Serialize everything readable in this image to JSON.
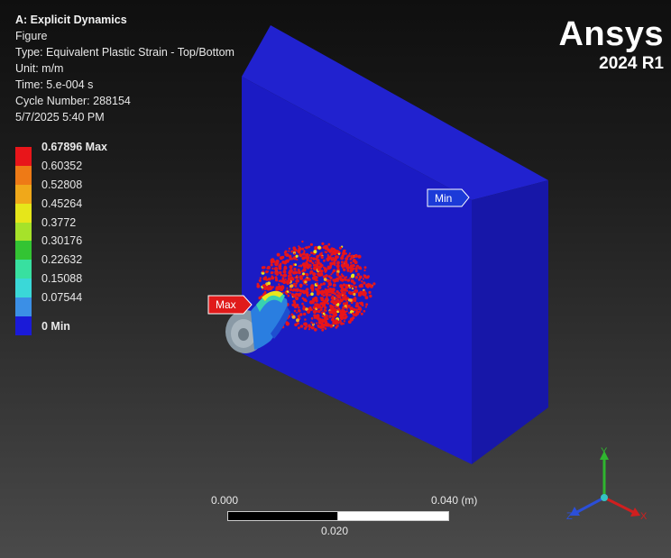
{
  "info": {
    "title": "A: Explicit Dynamics",
    "line1": "Figure",
    "line2": "Type: Equivalent Plastic Strain - Top/Bottom",
    "line3": "Unit: m/m",
    "line4": "Time: 5.e-004 s",
    "line5": "Cycle Number: 288154",
    "line6": "5/7/2025 5:40 PM"
  },
  "legend": {
    "labels": [
      "0.67896 Max",
      "0.60352",
      "0.52808",
      "0.45264",
      "0.3772",
      "0.30176",
      "0.22632",
      "0.15088",
      "0.07544",
      "0 Min"
    ],
    "colors": [
      "#e8151a",
      "#ee7a16",
      "#f0a81a",
      "#e6e61a",
      "#a6e22a",
      "#33c433",
      "#38e0a0",
      "#3ad8d8",
      "#3b8fe6",
      "#1a1ad8"
    ]
  },
  "logo": {
    "name": "Ansys",
    "version": "2024 R1"
  },
  "probes": {
    "min": "Min",
    "max": "Max"
  },
  "scale": {
    "left": "0.000",
    "right": "0.040 (m)",
    "mid": "0.020"
  },
  "triad": {
    "x": "X",
    "y": "Y",
    "z": "Z"
  },
  "colors": {
    "plate": "#1c1cc8",
    "plate_top": "#1f20d4",
    "plate_side": "#1616a0"
  }
}
